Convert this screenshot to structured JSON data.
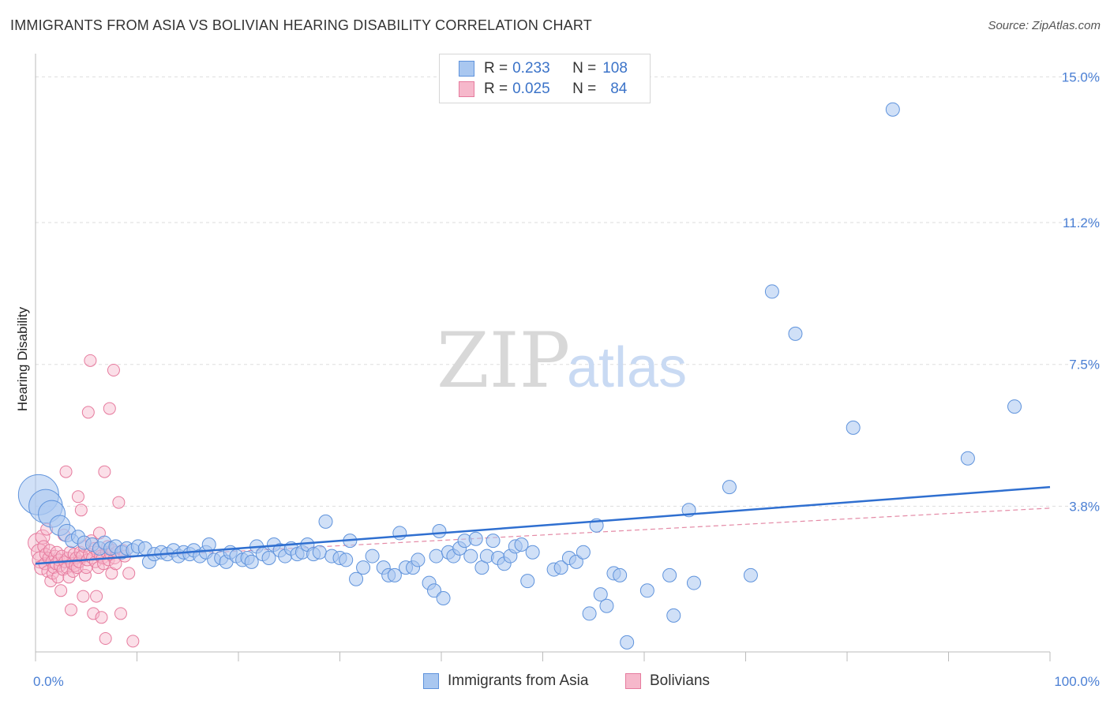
{
  "title": "IMMIGRANTS FROM ASIA VS BOLIVIAN HEARING DISABILITY CORRELATION CHART",
  "source": "Source: ZipAtlas.com",
  "watermark": {
    "zip": "ZIP",
    "atlas": "atlas"
  },
  "legend": {
    "rows": [
      {
        "r_label": "R =",
        "r_value": "0.233",
        "n_label": "N =",
        "n_value": "108"
      },
      {
        "r_label": "R =",
        "r_value": "0.025",
        "n_label": "N =",
        "n_value": "84"
      }
    ]
  },
  "colors": {
    "asia_fill": "#a9c7f0",
    "asia_stroke": "#5f93dc",
    "asia_line": "#2f6fd0",
    "bolivian_fill": "#f6b8cb",
    "bolivian_stroke": "#e67b9e",
    "bolivian_line": "#e48aa6",
    "grid": "#dddddd"
  },
  "chart_data": {
    "type": "scatter",
    "title": "IMMIGRANTS FROM ASIA VS BOLIVIAN HEARING DISABILITY CORRELATION CHART",
    "xlabel": "",
    "ylabel": "Hearing Disability",
    "xlim": [
      0,
      100
    ],
    "ylim": [
      0,
      15.4
    ],
    "x_tick_labels": [
      "0.0%",
      "100.0%"
    ],
    "y_ticks": [
      3.8,
      7.5,
      11.2,
      15.0
    ],
    "y_tick_labels": [
      "3.8%",
      "7.5%",
      "11.2%",
      "15.0%"
    ],
    "series": [
      {
        "name": "Immigrants from Asia",
        "R": 0.233,
        "N": 108,
        "trend": {
          "x": [
            0,
            100
          ],
          "y": [
            2.3,
            4.3
          ]
        },
        "points": [
          {
            "x": 0.3,
            "y": 4.1,
            "s": 3
          },
          {
            "x": 1.0,
            "y": 3.8,
            "s": 2.5
          },
          {
            "x": 1.6,
            "y": 3.6,
            "s": 2
          },
          {
            "x": 2.4,
            "y": 3.3,
            "s": 1.5
          },
          {
            "x": 3.1,
            "y": 3.1,
            "s": 1.3
          },
          {
            "x": 3.6,
            "y": 2.9,
            "s": 1
          },
          {
            "x": 4.2,
            "y": 3.0,
            "s": 1
          },
          {
            "x": 4.8,
            "y": 2.85,
            "s": 1
          },
          {
            "x": 5.6,
            "y": 2.8,
            "s": 1
          },
          {
            "x": 6.3,
            "y": 2.7,
            "s": 1
          },
          {
            "x": 6.8,
            "y": 2.85,
            "s": 1
          },
          {
            "x": 7.4,
            "y": 2.7,
            "s": 1
          },
          {
            "x": 7.9,
            "y": 2.75,
            "s": 1
          },
          {
            "x": 8.5,
            "y": 2.6,
            "s": 1
          },
          {
            "x": 9.0,
            "y": 2.7,
            "s": 1
          },
          {
            "x": 9.6,
            "y": 2.65,
            "s": 1
          },
          {
            "x": 10.1,
            "y": 2.75,
            "s": 1
          },
          {
            "x": 10.8,
            "y": 2.7,
            "s": 1
          },
          {
            "x": 11.2,
            "y": 2.35,
            "s": 1
          },
          {
            "x": 11.7,
            "y": 2.55,
            "s": 1
          },
          {
            "x": 12.4,
            "y": 2.6,
            "s": 1
          },
          {
            "x": 13.0,
            "y": 2.55,
            "s": 1
          },
          {
            "x": 13.6,
            "y": 2.65,
            "s": 1
          },
          {
            "x": 14.1,
            "y": 2.5,
            "s": 1
          },
          {
            "x": 14.6,
            "y": 2.6,
            "s": 1
          },
          {
            "x": 15.2,
            "y": 2.55,
            "s": 1
          },
          {
            "x": 15.6,
            "y": 2.65,
            "s": 1
          },
          {
            "x": 16.2,
            "y": 2.5,
            "s": 1
          },
          {
            "x": 16.8,
            "y": 2.6,
            "s": 1
          },
          {
            "x": 17.1,
            "y": 2.8,
            "s": 1
          },
          {
            "x": 17.6,
            "y": 2.4,
            "s": 1
          },
          {
            "x": 18.3,
            "y": 2.45,
            "s": 1
          },
          {
            "x": 18.8,
            "y": 2.35,
            "s": 1
          },
          {
            "x": 19.2,
            "y": 2.6,
            "s": 1
          },
          {
            "x": 19.8,
            "y": 2.5,
            "s": 1
          },
          {
            "x": 20.4,
            "y": 2.4,
            "s": 1
          },
          {
            "x": 20.9,
            "y": 2.45,
            "s": 1
          },
          {
            "x": 21.3,
            "y": 2.35,
            "s": 1
          },
          {
            "x": 21.8,
            "y": 2.75,
            "s": 1
          },
          {
            "x": 22.4,
            "y": 2.55,
            "s": 1
          },
          {
            "x": 23.0,
            "y": 2.45,
            "s": 1
          },
          {
            "x": 23.5,
            "y": 2.8,
            "s": 1
          },
          {
            "x": 24.1,
            "y": 2.65,
            "s": 1
          },
          {
            "x": 24.6,
            "y": 2.5,
            "s": 1
          },
          {
            "x": 25.2,
            "y": 2.7,
            "s": 1
          },
          {
            "x": 25.8,
            "y": 2.55,
            "s": 1
          },
          {
            "x": 26.3,
            "y": 2.6,
            "s": 1
          },
          {
            "x": 26.8,
            "y": 2.8,
            "s": 1
          },
          {
            "x": 27.4,
            "y": 2.55,
            "s": 1
          },
          {
            "x": 28.0,
            "y": 2.6,
            "s": 1
          },
          {
            "x": 28.6,
            "y": 3.4,
            "s": 1
          },
          {
            "x": 29.2,
            "y": 2.5,
            "s": 1
          },
          {
            "x": 30.0,
            "y": 2.45,
            "s": 1
          },
          {
            "x": 30.6,
            "y": 2.4,
            "s": 1
          },
          {
            "x": 31.0,
            "y": 2.9,
            "s": 1
          },
          {
            "x": 31.6,
            "y": 1.9,
            "s": 1
          },
          {
            "x": 32.3,
            "y": 2.2,
            "s": 1
          },
          {
            "x": 33.2,
            "y": 2.5,
            "s": 1
          },
          {
            "x": 34.3,
            "y": 2.2,
            "s": 1
          },
          {
            "x": 34.8,
            "y": 2.0,
            "s": 1
          },
          {
            "x": 35.4,
            "y": 2.0,
            "s": 1
          },
          {
            "x": 35.9,
            "y": 3.1,
            "s": 1
          },
          {
            "x": 36.5,
            "y": 2.2,
            "s": 1
          },
          {
            "x": 37.2,
            "y": 2.2,
            "s": 1
          },
          {
            "x": 37.7,
            "y": 2.4,
            "s": 1
          },
          {
            "x": 38.8,
            "y": 1.8,
            "s": 1
          },
          {
            "x": 39.3,
            "y": 1.6,
            "s": 1
          },
          {
            "x": 39.5,
            "y": 2.5,
            "s": 1
          },
          {
            "x": 39.8,
            "y": 3.15,
            "s": 1
          },
          {
            "x": 40.2,
            "y": 1.4,
            "s": 1
          },
          {
            "x": 40.7,
            "y": 2.6,
            "s": 1
          },
          {
            "x": 41.2,
            "y": 2.5,
            "s": 1
          },
          {
            "x": 41.8,
            "y": 2.7,
            "s": 1
          },
          {
            "x": 42.3,
            "y": 2.9,
            "s": 1
          },
          {
            "x": 42.9,
            "y": 2.5,
            "s": 1
          },
          {
            "x": 43.4,
            "y": 2.95,
            "s": 1
          },
          {
            "x": 44.0,
            "y": 2.2,
            "s": 1
          },
          {
            "x": 44.5,
            "y": 2.5,
            "s": 1
          },
          {
            "x": 45.1,
            "y": 2.9,
            "s": 1
          },
          {
            "x": 45.6,
            "y": 2.45,
            "s": 1
          },
          {
            "x": 46.2,
            "y": 2.3,
            "s": 1
          },
          {
            "x": 46.8,
            "y": 2.5,
            "s": 1
          },
          {
            "x": 47.3,
            "y": 2.75,
            "s": 1
          },
          {
            "x": 47.9,
            "y": 2.8,
            "s": 1
          },
          {
            "x": 48.5,
            "y": 1.85,
            "s": 1
          },
          {
            "x": 49.0,
            "y": 2.6,
            "s": 1
          },
          {
            "x": 51.1,
            "y": 2.15,
            "s": 1
          },
          {
            "x": 51.8,
            "y": 2.2,
            "s": 1
          },
          {
            "x": 52.6,
            "y": 2.45,
            "s": 1
          },
          {
            "x": 53.3,
            "y": 2.35,
            "s": 1
          },
          {
            "x": 54.0,
            "y": 2.6,
            "s": 1
          },
          {
            "x": 54.6,
            "y": 1.0,
            "s": 1
          },
          {
            "x": 55.3,
            "y": 3.3,
            "s": 1
          },
          {
            "x": 55.7,
            "y": 1.5,
            "s": 1
          },
          {
            "x": 56.3,
            "y": 1.2,
            "s": 1
          },
          {
            "x": 57.0,
            "y": 2.05,
            "s": 1
          },
          {
            "x": 57.6,
            "y": 2.0,
            "s": 1
          },
          {
            "x": 58.3,
            "y": 0.25,
            "s": 1
          },
          {
            "x": 60.3,
            "y": 1.6,
            "s": 1
          },
          {
            "x": 62.5,
            "y": 2.0,
            "s": 1
          },
          {
            "x": 62.9,
            "y": 0.95,
            "s": 1
          },
          {
            "x": 64.4,
            "y": 3.7,
            "s": 1
          },
          {
            "x": 64.9,
            "y": 1.8,
            "s": 1
          },
          {
            "x": 68.4,
            "y": 4.3,
            "s": 1
          },
          {
            "x": 70.5,
            "y": 2.0,
            "s": 1
          },
          {
            "x": 72.6,
            "y": 9.4,
            "s": 1
          },
          {
            "x": 74.9,
            "y": 8.3,
            "s": 1
          },
          {
            "x": 80.6,
            "y": 5.85,
            "s": 1
          },
          {
            "x": 84.5,
            "y": 14.15,
            "s": 1
          },
          {
            "x": 91.9,
            "y": 5.05,
            "s": 1
          },
          {
            "x": 96.5,
            "y": 6.4,
            "s": 1
          }
        ]
      },
      {
        "name": "Bolivians",
        "R": 0.025,
        "N": 84,
        "trend": {
          "x": [
            0,
            100
          ],
          "y": [
            2.35,
            3.75
          ]
        },
        "points": [
          {
            "x": 0.2,
            "y": 2.85,
            "s": 1.6
          },
          {
            "x": 0.4,
            "y": 2.6,
            "s": 1.4
          },
          {
            "x": 0.5,
            "y": 2.4,
            "s": 1.4
          },
          {
            "x": 0.6,
            "y": 2.2,
            "s": 1.2
          },
          {
            "x": 0.7,
            "y": 3.0,
            "s": 1.2
          },
          {
            "x": 0.8,
            "y": 2.75,
            "s": 1
          },
          {
            "x": 0.9,
            "y": 2.3,
            "s": 1
          },
          {
            "x": 1.0,
            "y": 2.55,
            "s": 1
          },
          {
            "x": 1.1,
            "y": 3.2,
            "s": 1
          },
          {
            "x": 1.2,
            "y": 2.1,
            "s": 1
          },
          {
            "x": 1.3,
            "y": 2.45,
            "s": 1
          },
          {
            "x": 1.4,
            "y": 2.65,
            "s": 1
          },
          {
            "x": 1.5,
            "y": 1.85,
            "s": 1
          },
          {
            "x": 1.6,
            "y": 2.35,
            "s": 1
          },
          {
            "x": 1.7,
            "y": 2.05,
            "s": 1
          },
          {
            "x": 1.8,
            "y": 2.2,
            "s": 1
          },
          {
            "x": 1.9,
            "y": 2.5,
            "s": 1
          },
          {
            "x": 2.0,
            "y": 2.3,
            "s": 1
          },
          {
            "x": 2.1,
            "y": 2.6,
            "s": 1
          },
          {
            "x": 2.2,
            "y": 1.95,
            "s": 1
          },
          {
            "x": 2.3,
            "y": 2.4,
            "s": 1
          },
          {
            "x": 2.4,
            "y": 2.25,
            "s": 1
          },
          {
            "x": 2.5,
            "y": 1.6,
            "s": 1
          },
          {
            "x": 2.6,
            "y": 2.5,
            "s": 1
          },
          {
            "x": 2.7,
            "y": 2.15,
            "s": 1
          },
          {
            "x": 2.8,
            "y": 3.05,
            "s": 1
          },
          {
            "x": 2.9,
            "y": 2.35,
            "s": 1
          },
          {
            "x": 3.0,
            "y": 4.7,
            "s": 1
          },
          {
            "x": 3.1,
            "y": 2.2,
            "s": 1
          },
          {
            "x": 3.2,
            "y": 2.45,
            "s": 1
          },
          {
            "x": 3.3,
            "y": 1.95,
            "s": 1
          },
          {
            "x": 3.4,
            "y": 2.6,
            "s": 1
          },
          {
            "x": 3.5,
            "y": 1.1,
            "s": 1
          },
          {
            "x": 3.6,
            "y": 2.3,
            "s": 1
          },
          {
            "x": 3.7,
            "y": 2.1,
            "s": 1
          },
          {
            "x": 3.8,
            "y": 2.55,
            "s": 1
          },
          {
            "x": 3.9,
            "y": 2.25,
            "s": 1
          },
          {
            "x": 4.0,
            "y": 2.45,
            "s": 1
          },
          {
            "x": 4.1,
            "y": 2.2,
            "s": 1
          },
          {
            "x": 4.2,
            "y": 4.05,
            "s": 1
          },
          {
            "x": 4.3,
            "y": 2.35,
            "s": 1
          },
          {
            "x": 4.4,
            "y": 2.6,
            "s": 1
          },
          {
            "x": 4.5,
            "y": 3.7,
            "s": 1
          },
          {
            "x": 4.6,
            "y": 2.5,
            "s": 1
          },
          {
            "x": 4.7,
            "y": 1.45,
            "s": 1
          },
          {
            "x": 4.8,
            "y": 2.75,
            "s": 1
          },
          {
            "x": 4.9,
            "y": 2.0,
            "s": 1
          },
          {
            "x": 5.0,
            "y": 2.2,
            "s": 1
          },
          {
            "x": 5.1,
            "y": 2.4,
            "s": 1
          },
          {
            "x": 5.2,
            "y": 6.25,
            "s": 1
          },
          {
            "x": 5.3,
            "y": 2.55,
            "s": 1
          },
          {
            "x": 5.4,
            "y": 7.6,
            "s": 1
          },
          {
            "x": 5.5,
            "y": 2.9,
            "s": 1
          },
          {
            "x": 5.6,
            "y": 2.45,
            "s": 1
          },
          {
            "x": 5.7,
            "y": 1.0,
            "s": 1
          },
          {
            "x": 5.8,
            "y": 2.7,
            "s": 1
          },
          {
            "x": 5.9,
            "y": 2.35,
            "s": 1
          },
          {
            "x": 6.0,
            "y": 1.45,
            "s": 1
          },
          {
            "x": 6.1,
            "y": 2.6,
            "s": 1
          },
          {
            "x": 6.2,
            "y": 2.2,
            "s": 1
          },
          {
            "x": 6.3,
            "y": 3.1,
            "s": 1
          },
          {
            "x": 6.4,
            "y": 2.5,
            "s": 1
          },
          {
            "x": 6.5,
            "y": 0.9,
            "s": 1
          },
          {
            "x": 6.6,
            "y": 2.45,
            "s": 1
          },
          {
            "x": 6.7,
            "y": 2.3,
            "s": 1
          },
          {
            "x": 6.8,
            "y": 4.7,
            "s": 1
          },
          {
            "x": 6.9,
            "y": 0.35,
            "s": 1
          },
          {
            "x": 7.0,
            "y": 2.6,
            "s": 1
          },
          {
            "x": 7.1,
            "y": 2.75,
            "s": 1
          },
          {
            "x": 7.2,
            "y": 2.4,
            "s": 1
          },
          {
            "x": 7.3,
            "y": 6.35,
            "s": 1
          },
          {
            "x": 7.4,
            "y": 2.55,
            "s": 1
          },
          {
            "x": 7.5,
            "y": 2.05,
            "s": 1
          },
          {
            "x": 7.6,
            "y": 2.65,
            "s": 1
          },
          {
            "x": 7.7,
            "y": 7.35,
            "s": 1
          },
          {
            "x": 7.8,
            "y": 2.45,
            "s": 1
          },
          {
            "x": 7.9,
            "y": 2.3,
            "s": 1
          },
          {
            "x": 8.0,
            "y": 2.6,
            "s": 1
          },
          {
            "x": 8.2,
            "y": 3.9,
            "s": 1
          },
          {
            "x": 8.4,
            "y": 1.0,
            "s": 1
          },
          {
            "x": 8.6,
            "y": 2.65,
            "s": 1
          },
          {
            "x": 8.8,
            "y": 2.5,
            "s": 1
          },
          {
            "x": 9.2,
            "y": 2.05,
            "s": 1
          },
          {
            "x": 9.6,
            "y": 0.28,
            "s": 1
          }
        ]
      }
    ]
  },
  "bottom_legend": [
    {
      "label": "Immigrants from Asia"
    },
    {
      "label": "Bolivians"
    }
  ]
}
